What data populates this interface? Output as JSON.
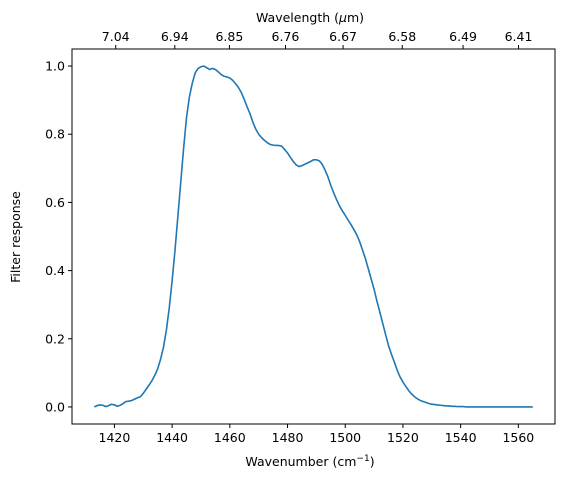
{
  "chart_data": {
    "type": "line",
    "xlabel": "Wavenumber (cm",
    "xlabel_sup": "−1",
    "xlabel_tail": ")",
    "ylabel": "Filter response",
    "top_axis_label_pre": "Wavelength (",
    "top_axis_label_mu": "μ",
    "top_axis_label_post": "m)",
    "xlim": [
      1405.3,
      1572.7
    ],
    "ylim": [
      -0.05,
      1.05
    ],
    "x_ticks": [
      1420,
      1440,
      1460,
      1480,
      1500,
      1520,
      1540,
      1560
    ],
    "x_tick_labels": [
      "1420",
      "1440",
      "1460",
      "1480",
      "1500",
      "1520",
      "1540",
      "1560"
    ],
    "y_ticks": [
      0.0,
      0.2,
      0.4,
      0.6,
      0.8,
      1.0
    ],
    "y_tick_labels": [
      "0.0",
      "0.2",
      "0.4",
      "0.6",
      "0.8",
      "1.0"
    ],
    "top_ticks": [
      7.04,
      6.94,
      6.85,
      6.76,
      6.67,
      6.58,
      6.49,
      6.41
    ],
    "top_tick_labels": [
      "7.04",
      "6.94",
      "6.85",
      "6.76",
      "6.67",
      "6.58",
      "6.49",
      "6.41"
    ],
    "grid": false,
    "line_color": "#1f77b4",
    "series": [
      {
        "x": [
          1413,
          1414,
          1415,
          1416,
          1417,
          1418,
          1419,
          1420,
          1421,
          1422,
          1423,
          1424,
          1425,
          1426,
          1427,
          1428,
          1429,
          1430,
          1431,
          1432,
          1433,
          1434,
          1435,
          1436,
          1437,
          1438,
          1439,
          1440,
          1441,
          1442,
          1443,
          1444,
          1445,
          1446,
          1447,
          1448,
          1449,
          1450,
          1451,
          1452,
          1453,
          1454,
          1455,
          1456,
          1457,
          1458,
          1459,
          1460,
          1461,
          1462,
          1463,
          1464,
          1465,
          1466,
          1467,
          1468,
          1469,
          1470,
          1471,
          1472,
          1473,
          1474,
          1475,
          1476,
          1477,
          1478,
          1479,
          1480,
          1481,
          1482,
          1483,
          1484,
          1485,
          1486,
          1487,
          1488,
          1489,
          1490,
          1491,
          1492,
          1493,
          1494,
          1495,
          1496,
          1497,
          1498,
          1499,
          1500,
          1501,
          1502,
          1503,
          1504,
          1505,
          1506,
          1507,
          1508,
          1509,
          1510,
          1511,
          1512,
          1513,
          1514,
          1515,
          1516,
          1517,
          1518,
          1519,
          1520,
          1521,
          1522,
          1523,
          1524,
          1525,
          1526,
          1527,
          1528,
          1529,
          1530,
          1531,
          1532,
          1533,
          1534,
          1535,
          1536,
          1537,
          1538,
          1539,
          1540,
          1541,
          1542,
          1543,
          1544,
          1545,
          1546,
          1547,
          1548,
          1549,
          1550,
          1551,
          1552,
          1553,
          1554,
          1555,
          1556,
          1557,
          1558,
          1559,
          1560,
          1561,
          1562,
          1563,
          1564,
          1565
        ],
        "y": [
          0.0,
          0.004,
          0.006,
          0.005,
          0.001,
          0.004,
          0.008,
          0.006,
          0.002,
          0.005,
          0.01,
          0.016,
          0.017,
          0.019,
          0.023,
          0.027,
          0.03,
          0.04,
          0.052,
          0.064,
          0.077,
          0.093,
          0.112,
          0.14,
          0.175,
          0.225,
          0.29,
          0.37,
          0.46,
          0.56,
          0.66,
          0.76,
          0.85,
          0.91,
          0.95,
          0.98,
          0.993,
          0.998,
          1.0,
          0.995,
          0.99,
          0.993,
          0.99,
          0.983,
          0.975,
          0.97,
          0.968,
          0.965,
          0.958,
          0.948,
          0.937,
          0.922,
          0.902,
          0.88,
          0.86,
          0.835,
          0.815,
          0.8,
          0.79,
          0.782,
          0.775,
          0.77,
          0.768,
          0.767,
          0.767,
          0.765,
          0.755,
          0.745,
          0.732,
          0.72,
          0.71,
          0.705,
          0.708,
          0.712,
          0.716,
          0.72,
          0.725,
          0.725,
          0.722,
          0.712,
          0.695,
          0.675,
          0.65,
          0.628,
          0.608,
          0.59,
          0.575,
          0.562,
          0.548,
          0.535,
          0.52,
          0.505,
          0.485,
          0.46,
          0.435,
          0.405,
          0.375,
          0.345,
          0.31,
          0.278,
          0.245,
          0.212,
          0.18,
          0.155,
          0.132,
          0.108,
          0.088,
          0.073,
          0.06,
          0.048,
          0.038,
          0.03,
          0.024,
          0.019,
          0.016,
          0.013,
          0.01,
          0.008,
          0.007,
          0.006,
          0.005,
          0.004,
          0.003,
          0.003,
          0.002,
          0.002,
          0.001,
          0.001,
          0.001,
          0.0,
          0.0,
          0.0,
          0.0,
          0.0,
          0.0,
          0.0,
          0.0,
          0.0,
          0.0,
          0.0,
          0.0,
          0.0,
          0.0,
          0.0,
          0.0,
          0.0,
          0.0,
          0.0,
          0.0,
          0.0,
          0.0,
          0.0,
          0.0
        ]
      }
    ]
  }
}
